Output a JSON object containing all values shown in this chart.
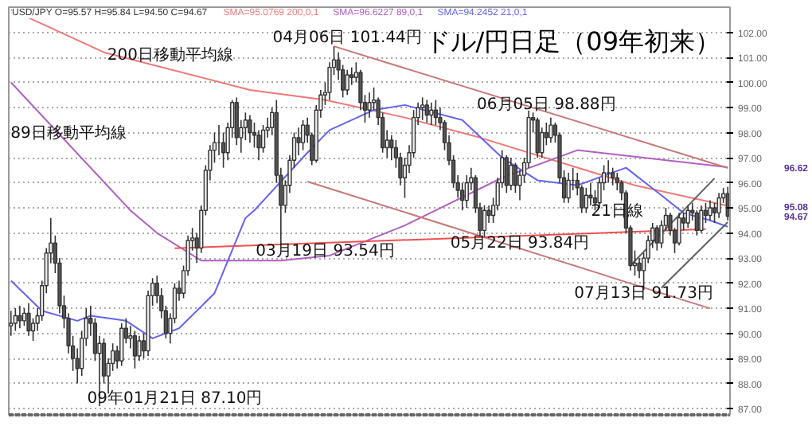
{
  "chart_data": {
    "type": "candlestick",
    "title": "ドル/円日足（09年初来）",
    "subtitle": "USD/JPY O=95.57 H=95.84 L=94.50 C=94.67",
    "categories": [
      null,
      null,
      null,
      null,
      null,
      null,
      null,
      null,
      null,
      null,
      null,
      null,
      null,
      null,
      null,
      null,
      null,
      null,
      null,
      null,
      null,
      null,
      null,
      null,
      null,
      null,
      null,
      null,
      null,
      null,
      null,
      null,
      null,
      null,
      null,
      null,
      null,
      null,
      null,
      null,
      null,
      null,
      null,
      null,
      null,
      null,
      null,
      null,
      null,
      null,
      null,
      null,
      null,
      null,
      null,
      null,
      null,
      null,
      null,
      null,
      null,
      null,
      null,
      null,
      null,
      null,
      null,
      null,
      null,
      null,
      null,
      null,
      null,
      null,
      null,
      null,
      null,
      null,
      null,
      null,
      null,
      null,
      null,
      null,
      null,
      null,
      null,
      null,
      null,
      null,
      null,
      null,
      null,
      null,
      null,
      null,
      null,
      null,
      null,
      null,
      null,
      null,
      null,
      null,
      null,
      null,
      null,
      null,
      null,
      null,
      null,
      null,
      null,
      null,
      null,
      null,
      null,
      null,
      null,
      null,
      null,
      null,
      null,
      null,
      null,
      null,
      null,
      null,
      null,
      null,
      null,
      null,
      null,
      null,
      null,
      null,
      null,
      null,
      null,
      null,
      null,
      null,
      null,
      null,
      null,
      null,
      null,
      null,
      null,
      null,
      null,
      null,
      null,
      null,
      null,
      null,
      null,
      null,
      null,
      null,
      null,
      null,
      null
    ],
    "ohlc": [
      [
        90.3,
        90.9,
        89.9,
        90.4
      ],
      [
        90.4,
        91.0,
        90.1,
        90.7
      ],
      [
        90.7,
        91.1,
        90.2,
        90.5
      ],
      [
        90.5,
        91.0,
        90.3,
        90.8
      ],
      [
        90.8,
        91.2,
        89.9,
        90.1
      ],
      [
        90.1,
        90.6,
        89.7,
        90.4
      ],
      [
        90.4,
        91.0,
        90.1,
        90.7
      ],
      [
        90.7,
        92.1,
        90.5,
        91.9
      ],
      [
        91.9,
        93.4,
        91.6,
        93.2
      ],
      [
        93.2,
        94.6,
        92.8,
        93.6
      ],
      [
        93.6,
        93.9,
        92.4,
        92.8
      ],
      [
        92.8,
        93.0,
        90.8,
        91.1
      ],
      [
        91.1,
        91.5,
        90.2,
        90.6
      ],
      [
        90.6,
        90.8,
        89.2,
        89.5
      ],
      [
        89.5,
        89.9,
        88.5,
        89.0
      ],
      [
        89.0,
        89.4,
        88.0,
        88.6
      ],
      [
        88.6,
        90.1,
        88.3,
        89.8
      ],
      [
        89.8,
        91.0,
        89.5,
        90.6
      ],
      [
        90.6,
        91.1,
        89.9,
        90.4
      ],
      [
        90.4,
        90.6,
        88.9,
        89.2
      ],
      [
        89.2,
        89.9,
        87.1,
        89.6
      ],
      [
        89.6,
        89.8,
        88.0,
        88.3
      ],
      [
        88.3,
        89.0,
        87.6,
        88.8
      ],
      [
        88.8,
        89.6,
        88.5,
        89.3
      ],
      [
        89.3,
        89.5,
        88.6,
        88.9
      ],
      [
        88.9,
        90.4,
        88.7,
        90.2
      ],
      [
        90.2,
        90.6,
        89.6,
        89.8
      ],
      [
        89.8,
        90.3,
        89.4,
        89.9
      ],
      [
        89.9,
        90.1,
        88.6,
        89.1
      ],
      [
        89.1,
        89.9,
        88.9,
        89.7
      ],
      [
        89.7,
        90.0,
        89.0,
        89.3
      ],
      [
        89.3,
        91.7,
        89.1,
        91.5
      ],
      [
        91.5,
        92.2,
        91.1,
        92.0
      ],
      [
        92.0,
        92.3,
        91.2,
        91.5
      ],
      [
        91.5,
        91.8,
        90.6,
        90.9
      ],
      [
        90.9,
        91.1,
        89.8,
        90.0
      ],
      [
        90.0,
        90.8,
        89.6,
        90.6
      ],
      [
        90.6,
        92.0,
        90.4,
        91.8
      ],
      [
        91.8,
        92.1,
        91.3,
        91.6
      ],
      [
        91.6,
        92.7,
        91.4,
        92.5
      ],
      [
        92.5,
        93.9,
        92.3,
        93.7
      ],
      [
        93.7,
        94.2,
        93.3,
        93.8
      ],
      [
        93.8,
        94.0,
        92.8,
        93.4
      ],
      [
        93.4,
        95.1,
        93.2,
        94.9
      ],
      [
        94.9,
        96.7,
        94.7,
        96.5
      ],
      [
        96.5,
        97.5,
        96.1,
        97.3
      ],
      [
        97.3,
        98.0,
        96.8,
        97.6
      ],
      [
        97.6,
        98.3,
        97.1,
        97.6
      ],
      [
        97.6,
        98.0,
        96.6,
        97.2
      ],
      [
        97.2,
        98.4,
        96.9,
        98.2
      ],
      [
        98.2,
        99.3,
        97.8,
        99.2
      ],
      [
        99.2,
        99.4,
        97.5,
        97.8
      ],
      [
        97.8,
        98.5,
        97.2,
        98.2
      ],
      [
        98.2,
        98.8,
        97.7,
        98.5
      ],
      [
        98.5,
        98.7,
        97.6,
        98.0
      ],
      [
        98.0,
        98.4,
        97.4,
        97.9
      ],
      [
        97.9,
        98.1,
        96.9,
        97.4
      ],
      [
        97.4,
        98.3,
        97.2,
        98.1
      ],
      [
        98.1,
        98.6,
        97.8,
        98.2
      ],
      [
        98.2,
        99.0,
        97.9,
        98.8
      ],
      [
        98.8,
        99.3,
        96.0,
        96.3
      ],
      [
        96.3,
        96.6,
        93.54,
        95.1
      ],
      [
        95.1,
        96.1,
        94.8,
        95.9
      ],
      [
        95.9,
        97.1,
        95.6,
        96.9
      ],
      [
        96.9,
        98.0,
        96.6,
        97.8
      ],
      [
        97.8,
        98.2,
        97.1,
        97.6
      ],
      [
        97.6,
        98.5,
        97.3,
        98.3
      ],
      [
        98.3,
        98.6,
        97.6,
        97.9
      ],
      [
        97.9,
        98.0,
        96.7,
        96.9
      ],
      [
        96.9,
        99.1,
        96.8,
        98.9
      ],
      [
        98.9,
        99.7,
        98.6,
        99.5
      ],
      [
        99.5,
        100.0,
        99.1,
        99.6
      ],
      [
        99.6,
        100.8,
        99.3,
        100.6
      ],
      [
        100.6,
        101.44,
        100.3,
        100.9
      ],
      [
        100.9,
        101.2,
        100.1,
        100.5
      ],
      [
        100.5,
        100.7,
        99.4,
        99.7
      ],
      [
        99.7,
        100.5,
        99.5,
        100.3
      ],
      [
        100.3,
        100.6,
        99.9,
        100.2
      ],
      [
        100.2,
        100.8,
        100.0,
        100.4
      ],
      [
        100.4,
        100.5,
        98.9,
        99.2
      ],
      [
        99.2,
        99.5,
        98.4,
        98.9
      ],
      [
        98.9,
        99.6,
        98.6,
        99.2
      ],
      [
        99.2,
        99.8,
        98.9,
        99.3
      ],
      [
        99.3,
        99.4,
        98.3,
        98.6
      ],
      [
        98.6,
        98.8,
        97.2,
        97.4
      ],
      [
        97.4,
        98.1,
        97.0,
        97.7
      ],
      [
        97.7,
        97.9,
        96.9,
        97.4
      ],
      [
        97.4,
        97.7,
        96.6,
        97.0
      ],
      [
        97.0,
        97.2,
        95.9,
        96.2
      ],
      [
        96.2,
        97.0,
        95.4,
        96.7
      ],
      [
        96.7,
        97.5,
        96.4,
        97.2
      ],
      [
        97.2,
        98.9,
        97.0,
        98.6
      ],
      [
        98.6,
        99.2,
        98.3,
        99.0
      ],
      [
        99.0,
        99.4,
        98.5,
        99.1
      ],
      [
        99.1,
        99.3,
        98.4,
        98.7
      ],
      [
        98.7,
        99.2,
        98.3,
        98.9
      ],
      [
        98.9,
        99.3,
        98.3,
        98.6
      ],
      [
        98.6,
        99.0,
        98.1,
        98.4
      ],
      [
        98.4,
        98.5,
        97.3,
        97.6
      ],
      [
        97.6,
        97.9,
        96.7,
        96.9
      ],
      [
        96.9,
        97.1,
        95.8,
        96.0
      ],
      [
        96.0,
        96.3,
        95.4,
        95.7
      ],
      [
        95.7,
        96.0,
        94.9,
        95.3
      ],
      [
        95.3,
        96.3,
        95.0,
        96.0
      ],
      [
        96.0,
        96.6,
        95.7,
        96.2
      ],
      [
        96.2,
        96.3,
        94.8,
        95.0
      ],
      [
        95.0,
        95.2,
        93.9,
        94.1
      ],
      [
        94.1,
        95.1,
        93.84,
        94.9
      ],
      [
        94.9,
        95.1,
        94.4,
        94.7
      ],
      [
        94.7,
        95.4,
        94.4,
        95.1
      ],
      [
        95.1,
        96.2,
        94.9,
        96.0
      ],
      [
        96.0,
        97.3,
        95.8,
        97.0
      ],
      [
        97.0,
        97.1,
        95.6,
        95.9
      ],
      [
        95.9,
        97.0,
        95.7,
        96.7
      ],
      [
        96.7,
        96.8,
        95.6,
        95.9
      ],
      [
        95.9,
        96.5,
        95.3,
        96.3
      ],
      [
        96.3,
        97.0,
        96.0,
        96.8
      ],
      [
        96.8,
        98.88,
        96.6,
        98.6
      ],
      [
        98.6,
        98.8,
        98.0,
        98.5
      ],
      [
        98.5,
        98.6,
        97.0,
        97.2
      ],
      [
        97.2,
        98.2,
        97.0,
        98.0
      ],
      [
        98.0,
        98.4,
        97.5,
        97.8
      ],
      [
        97.8,
        98.6,
        97.6,
        98.3
      ],
      [
        98.3,
        98.4,
        97.6,
        97.9
      ],
      [
        97.9,
        98.0,
        96.0,
        96.2
      ],
      [
        96.2,
        96.5,
        95.2,
        95.4
      ],
      [
        95.4,
        96.4,
        95.2,
        96.1
      ],
      [
        96.1,
        96.6,
        95.7,
        96.1
      ],
      [
        96.1,
        96.4,
        95.5,
        95.8
      ],
      [
        95.8,
        95.9,
        94.8,
        95.0
      ],
      [
        95.0,
        95.8,
        94.8,
        95.5
      ],
      [
        95.5,
        96.0,
        95.1,
        95.4
      ],
      [
        95.4,
        95.7,
        94.9,
        95.2
      ],
      [
        95.2,
        96.2,
        95.0,
        96.0
      ],
      [
        96.0,
        96.7,
        95.7,
        96.4
      ],
      [
        96.4,
        96.9,
        96.0,
        96.4
      ],
      [
        96.4,
        96.6,
        95.9,
        96.2
      ],
      [
        96.2,
        96.4,
        95.7,
        96.0
      ],
      [
        96.0,
        96.1,
        95.3,
        95.6
      ],
      [
        95.6,
        95.7,
        94.0,
        94.2
      ],
      [
        94.2,
        94.3,
        92.5,
        92.7
      ],
      [
        92.7,
        93.3,
        92.3,
        92.8
      ],
      [
        92.8,
        93.0,
        92.2,
        92.5
      ],
      [
        92.5,
        93.2,
        91.73,
        93.0
      ],
      [
        93.0,
        93.9,
        92.8,
        93.7
      ],
      [
        93.7,
        94.4,
        93.4,
        94.2
      ],
      [
        94.2,
        94.3,
        93.3,
        93.6
      ],
      [
        93.6,
        94.5,
        93.4,
        94.3
      ],
      [
        94.3,
        95.0,
        94.1,
        94.7
      ],
      [
        94.7,
        94.8,
        93.9,
        94.1
      ],
      [
        94.1,
        94.2,
        93.2,
        93.6
      ],
      [
        93.6,
        94.8,
        93.5,
        94.6
      ],
      [
        94.6,
        94.8,
        94.1,
        94.4
      ],
      [
        94.4,
        95.1,
        94.2,
        94.9
      ],
      [
        94.9,
        95.2,
        94.5,
        94.8
      ],
      [
        94.8,
        94.9,
        93.9,
        94.1
      ],
      [
        94.1,
        95.1,
        94.0,
        94.9
      ],
      [
        94.9,
        95.2,
        94.4,
        94.7
      ],
      [
        94.7,
        95.3,
        94.5,
        95.0
      ],
      [
        95.0,
        95.2,
        94.4,
        94.8
      ],
      [
        94.8,
        95.6,
        94.6,
        95.4
      ],
      [
        95.4,
        95.8,
        95.2,
        95.57
      ],
      [
        95.57,
        95.84,
        94.5,
        94.67
      ]
    ],
    "series": [
      {
        "type": "line",
        "name": "SMA=95.0769 200,0,1",
        "color": "#f07878",
        "values": [
          102.9,
          null,
          null,
          null,
          null,
          null,
          null,
          null,
          null,
          null,
          null,
          null,
          null,
          null,
          null,
          null,
          null,
          null,
          null,
          null,
          null,
          101.2,
          null,
          null,
          null,
          null,
          null,
          null,
          null,
          null,
          null,
          null,
          null,
          null,
          null,
          null,
          null,
          null,
          null,
          null,
          null,
          null,
          null,
          null,
          null,
          null,
          null,
          null,
          null,
          null,
          null,
          null,
          null,
          null,
          99.7,
          null,
          null,
          null,
          null,
          null,
          null,
          null,
          null,
          null,
          null,
          null,
          null,
          null,
          null,
          null,
          null,
          99.3,
          null,
          null,
          null,
          null,
          null,
          null,
          null,
          null,
          null,
          null,
          null,
          null,
          null,
          null,
          null,
          null,
          null,
          98.6,
          null,
          null,
          null,
          null,
          null,
          null,
          null,
          null,
          null,
          null,
          null,
          null,
          null,
          null,
          null,
          null,
          97.8,
          null,
          null,
          null,
          null,
          null,
          null,
          null,
          null,
          null,
          null,
          null,
          null,
          null,
          null,
          null,
          null,
          null,
          null,
          null,
          null,
          null,
          null,
          null,
          null,
          null,
          null,
          null,
          null,
          null,
          null,
          null,
          null,
          null,
          null,
          95.9,
          null,
          null,
          null,
          null,
          null,
          null,
          null,
          null,
          null,
          null,
          null,
          null,
          null,
          null,
          null,
          null,
          null,
          null,
          null,
          null,
          95.08
        ]
      },
      {
        "type": "line",
        "name": "SMA=96.6227 89,0,1",
        "color": "#b060c0",
        "values": [
          100.0,
          null,
          null,
          null,
          null,
          null,
          null,
          null,
          null,
          null,
          null,
          null,
          null,
          null,
          null,
          null,
          null,
          null,
          null,
          null,
          null,
          null,
          null,
          null,
          null,
          null,
          null,
          94.9,
          null,
          null,
          null,
          null,
          null,
          94.0,
          null,
          null,
          null,
          null,
          null,
          null,
          null,
          null,
          null,
          92.9,
          null,
          null,
          null,
          null,
          null,
          null,
          null,
          null,
          null,
          null,
          null,
          null,
          null,
          null,
          null,
          null,
          null,
          92.9,
          null,
          null,
          null,
          null,
          null,
          null,
          null,
          null,
          null,
          null,
          93.1,
          null,
          null,
          null,
          null,
          null,
          null,
          null,
          null,
          null,
          null,
          null,
          null,
          null,
          null,
          null,
          null,
          94.3,
          null,
          null,
          null,
          null,
          null,
          null,
          null,
          null,
          null,
          null,
          null,
          null,
          null,
          null,
          null,
          null,
          null,
          null,
          null,
          null,
          null,
          96.2,
          null,
          null,
          null,
          null,
          null,
          null,
          null,
          null,
          null,
          null,
          null,
          null,
          null,
          null,
          null,
          null,
          97.3,
          null,
          null,
          null,
          null,
          null,
          null,
          null,
          null,
          null,
          null,
          null,
          null,
          null,
          null,
          null,
          null,
          null,
          null,
          null,
          null,
          null,
          null,
          null,
          null,
          null,
          null,
          null,
          null,
          null,
          null,
          null,
          null,
          null,
          96.62
        ]
      },
      {
        "type": "line",
        "name": "SMA=94.2452 21,0,1",
        "color": "#6464f0",
        "values": [
          92.1,
          null,
          null,
          null,
          null,
          null,
          null,
          90.9,
          null,
          null,
          null,
          null,
          null,
          null,
          null,
          90.5,
          null,
          null,
          90.7,
          null,
          null,
          null,
          null,
          null,
          null,
          null,
          90.5,
          null,
          null,
          null,
          null,
          null,
          89.8,
          null,
          null,
          null,
          null,
          null,
          90.2,
          null,
          null,
          null,
          null,
          null,
          null,
          null,
          91.6,
          null,
          null,
          null,
          null,
          null,
          null,
          94.6,
          null,
          94.9,
          null,
          null,
          null,
          null,
          null,
          null,
          null,
          null,
          null,
          null,
          null,
          97.2,
          null,
          null,
          null,
          null,
          98.1,
          null,
          null,
          null,
          null,
          null,
          null,
          null,
          null,
          null,
          98.9,
          null,
          null,
          null,
          null,
          null,
          null,
          99.1,
          null,
          null,
          null,
          null,
          null,
          null,
          null,
          null,
          null,
          null,
          null,
          null,
          98.5,
          null,
          null,
          null,
          null,
          null,
          null,
          null,
          null,
          97.0,
          null,
          null,
          null,
          null,
          null,
          null,
          null,
          96.1,
          null,
          null,
          null,
          null,
          null,
          null,
          null,
          null,
          95.9,
          null,
          null,
          null,
          null,
          null,
          null,
          null,
          null,
          null,
          null,
          96.6,
          null,
          null,
          null,
          null,
          null,
          null,
          null,
          95.5,
          null,
          null,
          null,
          null,
          94.8,
          null,
          null,
          null,
          null,
          null,
          94.5,
          null,
          null,
          null,
          94.25
        ]
      },
      {
        "type": "line",
        "color": "#c87878",
        "values": [
          null,
          null,
          null,
          null,
          null,
          null,
          null,
          null,
          null,
          null,
          null,
          null,
          null,
          null,
          null,
          null,
          null,
          null,
          null,
          null,
          null,
          null,
          null,
          null,
          null,
          null,
          null,
          null,
          null,
          null,
          null,
          null,
          null,
          null,
          null,
          null,
          null,
          null,
          null,
          null,
          null,
          null,
          null,
          null,
          null,
          null,
          null,
          null,
          null,
          null,
          null,
          null,
          null,
          null,
          null,
          null,
          null,
          null,
          null,
          null,
          null,
          null,
          null,
          null,
          null,
          null,
          null,
          null,
          null,
          null,
          null,
          null,
          null,
          101.44,
          null,
          null,
          null,
          null,
          null,
          null,
          null,
          null,
          null,
          null,
          null,
          null,
          null,
          null,
          null,
          null,
          null,
          null,
          null,
          null,
          null,
          null,
          null,
          null,
          null,
          null,
          null,
          null,
          null,
          null,
          null,
          null,
          null,
          null,
          null,
          null,
          null,
          null,
          null,
          null,
          null,
          null,
          null,
          null,
          null,
          null,
          null,
          null,
          null,
          null,
          null,
          null,
          null,
          null,
          null,
          null,
          null,
          null,
          null,
          null,
          null,
          null,
          null,
          null,
          null,
          null,
          null,
          null,
          null,
          null,
          null,
          null,
          null,
          null,
          null,
          null,
          null,
          null,
          null,
          null,
          null,
          null,
          null,
          null,
          null,
          null,
          null,
          null,
          96.59
        ]
      },
      {
        "type": "line",
        "color": "#c87878",
        "values": [
          null,
          null,
          null,
          null,
          null,
          null,
          null,
          null,
          null,
          null,
          null,
          null,
          null,
          null,
          null,
          null,
          null,
          null,
          null,
          null,
          null,
          null,
          null,
          null,
          null,
          null,
          null,
          null,
          null,
          null,
          null,
          null,
          null,
          null,
          null,
          null,
          null,
          null,
          null,
          null,
          null,
          null,
          null,
          null,
          null,
          null,
          null,
          null,
          null,
          null,
          null,
          null,
          null,
          null,
          null,
          null,
          null,
          null,
          null,
          null,
          null,
          null,
          null,
          null,
          null,
          null,
          null,
          96.05,
          null,
          null,
          null,
          null,
          null,
          null,
          null,
          null,
          null,
          null,
          null,
          null,
          null,
          null,
          null,
          null,
          null,
          null,
          null,
          null,
          null,
          null,
          null,
          null,
          null,
          null,
          null,
          null,
          null,
          null,
          null,
          null,
          null,
          null,
          null,
          null,
          null,
          null,
          null,
          null,
          null,
          null,
          null,
          null,
          null,
          null,
          null,
          null,
          null,
          null,
          null,
          null,
          null,
          null,
          null,
          null,
          null,
          null,
          null,
          null,
          null,
          null,
          null,
          null,
          null,
          null,
          null,
          null,
          null,
          null,
          null,
          null,
          null,
          null,
          null,
          null,
          null,
          null,
          null,
          null,
          null,
          null,
          null,
          null,
          null,
          null,
          null,
          null,
          null,
          null,
          90.99,
          null,
          null,
          null,
          null
        ]
      },
      {
        "type": "line",
        "color": "#f05050",
        "values": [
          null,
          null,
          null,
          null,
          null,
          null,
          null,
          null,
          null,
          null,
          null,
          null,
          null,
          null,
          null,
          null,
          null,
          null,
          null,
          null,
          null,
          null,
          null,
          null,
          null,
          null,
          null,
          null,
          null,
          null,
          null,
          null,
          null,
          null,
          null,
          null,
          null,
          93.39,
          null,
          null,
          null,
          null,
          null,
          null,
          null,
          null,
          null,
          null,
          null,
          null,
          null,
          null,
          null,
          null,
          null,
          null,
          null,
          null,
          null,
          null,
          null,
          null,
          null,
          null,
          null,
          null,
          null,
          null,
          null,
          null,
          null,
          null,
          null,
          null,
          null,
          null,
          null,
          null,
          null,
          null,
          null,
          null,
          null,
          null,
          null,
          null,
          null,
          null,
          null,
          null,
          null,
          null,
          null,
          null,
          null,
          null,
          null,
          null,
          null,
          null,
          null,
          null,
          null,
          null,
          null,
          null,
          null,
          null,
          null,
          null,
          null,
          null,
          null,
          null,
          null,
          null,
          null,
          null,
          null,
          null,
          null,
          null,
          null,
          null,
          null,
          null,
          null,
          null,
          null,
          null,
          null,
          null,
          null,
          null,
          null,
          null,
          null,
          null,
          null,
          null,
          null,
          null,
          null,
          null,
          null,
          null,
          null,
          null,
          null,
          null,
          null,
          null,
          null,
          null,
          null,
          null,
          null,
          94.15,
          null,
          null,
          null,
          null,
          null
        ]
      },
      {
        "type": "line",
        "color": "#606060",
        "values": [
          null,
          null,
          null,
          null,
          null,
          null,
          null,
          null,
          null,
          null,
          null,
          null,
          null,
          null,
          null,
          null,
          null,
          null,
          null,
          null,
          null,
          null,
          null,
          null,
          null,
          null,
          null,
          null,
          null,
          null,
          null,
          null,
          null,
          null,
          null,
          null,
          null,
          null,
          null,
          null,
          null,
          null,
          null,
          null,
          null,
          null,
          null,
          null,
          null,
          null,
          null,
          null,
          null,
          null,
          null,
          null,
          null,
          null,
          null,
          null,
          null,
          null,
          null,
          null,
          null,
          null,
          null,
          null,
          null,
          null,
          null,
          null,
          null,
          null,
          null,
          null,
          null,
          null,
          null,
          null,
          null,
          null,
          null,
          null,
          null,
          null,
          null,
          null,
          null,
          null,
          null,
          null,
          null,
          null,
          null,
          null,
          null,
          null,
          null,
          null,
          null,
          null,
          null,
          null,
          null,
          null,
          null,
          null,
          null,
          null,
          null,
          null,
          null,
          null,
          null,
          null,
          null,
          null,
          null,
          null,
          null,
          null,
          null,
          null,
          null,
          null,
          null,
          null,
          null,
          null,
          null,
          null,
          null,
          null,
          null,
          null,
          null,
          null,
          null,
          null,
          92.7,
          null,
          null,
          null,
          null,
          null,
          null,
          null,
          null,
          null,
          null,
          null,
          null,
          null,
          null,
          null,
          null,
          null,
          null,
          96.18,
          null,
          null,
          null
        ]
      },
      {
        "type": "line",
        "color": "#606060",
        "values": [
          null,
          null,
          null,
          null,
          null,
          null,
          null,
          null,
          null,
          null,
          null,
          null,
          null,
          null,
          null,
          null,
          null,
          null,
          null,
          null,
          null,
          null,
          null,
          null,
          null,
          null,
          null,
          null,
          null,
          null,
          null,
          null,
          null,
          null,
          null,
          null,
          null,
          null,
          null,
          null,
          null,
          null,
          null,
          null,
          null,
          null,
          null,
          null,
          null,
          null,
          null,
          null,
          null,
          null,
          null,
          null,
          null,
          null,
          null,
          null,
          null,
          null,
          null,
          null,
          null,
          null,
          null,
          null,
          null,
          null,
          null,
          null,
          null,
          null,
          null,
          null,
          null,
          null,
          null,
          null,
          null,
          null,
          null,
          null,
          null,
          null,
          null,
          null,
          null,
          null,
          null,
          null,
          null,
          null,
          null,
          null,
          null,
          null,
          null,
          null,
          null,
          null,
          null,
          null,
          null,
          null,
          null,
          null,
          null,
          null,
          null,
          null,
          null,
          null,
          null,
          null,
          null,
          null,
          null,
          null,
          null,
          null,
          null,
          null,
          null,
          null,
          null,
          null,
          null,
          null,
          null,
          null,
          null,
          null,
          null,
          null,
          null,
          null,
          null,
          null,
          null,
          null,
          null,
          null,
          null,
          null,
          null,
          91.81,
          null,
          null,
          null,
          null,
          null,
          null,
          null,
          null,
          null,
          null,
          null,
          null,
          null,
          null,
          94.43
        ]
      }
    ],
    "ylim": [
      86.75,
      103.0
    ],
    "yticks": [
      {
        "value": 87,
        "label": "87.00"
      },
      {
        "value": 88,
        "label": "88.00"
      },
      {
        "value": 89,
        "label": "89.00"
      },
      {
        "value": 90,
        "label": "90.00"
      },
      {
        "value": 91,
        "label": "91.00"
      },
      {
        "value": 92,
        "label": "92.00"
      },
      {
        "value": 93,
        "label": "93.00"
      },
      {
        "value": 94,
        "label": "94.00"
      },
      {
        "value": 95,
        "label": "95.00"
      },
      {
        "value": 96,
        "label": "96.00"
      },
      {
        "value": 97,
        "label": "97.00"
      },
      {
        "value": 98,
        "label": "98.00"
      },
      {
        "value": 99,
        "label": "99.00"
      },
      {
        "value": 100,
        "label": "100.00"
      },
      {
        "value": 101,
        "label": "101.00"
      },
      {
        "value": 102,
        "label": "102.00"
      }
    ],
    "tick_labels": "y",
    "grid": "y",
    "annotations": [
      "200日移動平均線",
      "89日移動平均線",
      "04月06日 101.44円",
      "06月05日 98.88円",
      "03月19日 93.54円",
      "05月22日 93.84円",
      "07月13日 91.73円",
      "09年01月21日 87.10円",
      "21日線",
      "96.62",
      "95.08",
      "94.67"
    ]
  }
}
